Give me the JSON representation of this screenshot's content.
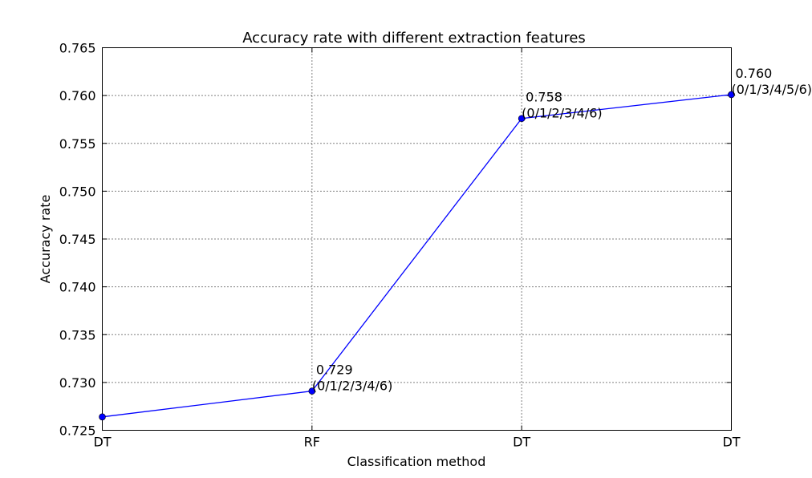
{
  "chart_data": {
    "type": "line",
    "title": "Accuracy rate with different extraction features",
    "xlabel": "Classification method",
    "ylabel": "Accuracy rate",
    "categories": [
      "DT",
      "RF",
      "DT",
      "DT"
    ],
    "series": [
      {
        "values": [
          0.7264,
          0.7291,
          0.7576,
          0.7601
        ],
        "color": "#0000ff"
      }
    ],
    "annotations": [
      {
        "index": 1,
        "value_text": "0.729",
        "feature_text": "(0/1/2/3/4/6)"
      },
      {
        "index": 2,
        "value_text": "0.758",
        "feature_text": "(0/1/2/3/4/6)"
      },
      {
        "index": 3,
        "value_text": "0.760",
        "feature_text": "(0/1/3/4/5/6)"
      }
    ],
    "ylim": [
      0.725,
      0.765
    ],
    "yticks": [
      "0.725",
      "0.730",
      "0.735",
      "0.740",
      "0.745",
      "0.750",
      "0.755",
      "0.760",
      "0.765"
    ],
    "grid": true
  }
}
